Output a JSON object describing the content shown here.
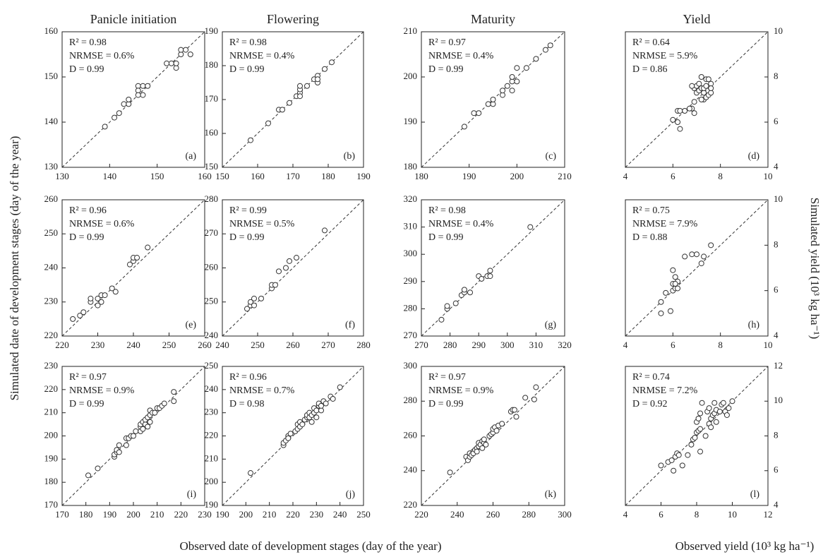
{
  "figure": {
    "y_label": "Simulated date of development stages  (day of the year)",
    "y_label_right": "Simulated yield (10³ kg ha⁻¹)",
    "x_label": "Observed date of development stages  (day of the year)",
    "x_label_right": "Observed yield (10³ kg ha⁻¹)"
  },
  "chart_data": [
    {
      "type": "scatter",
      "title": "Panicle initiation",
      "panel_label": "(a)",
      "annotations": [
        "R² = 0.98",
        "NRMSE = 0.6%",
        "D = 0.99"
      ],
      "color": "#333333",
      "identity_line": true,
      "y_axis_side": "left",
      "x": [
        139,
        141,
        142,
        143,
        144,
        144,
        146,
        146,
        147,
        147,
        148,
        152,
        153,
        154,
        154,
        155,
        155,
        156,
        157,
        146
      ],
      "y": [
        139,
        141,
        142,
        144,
        144,
        145,
        148,
        147,
        148,
        146,
        148,
        153,
        153,
        152,
        153,
        155,
        156,
        156,
        155,
        146
      ],
      "xlim": [
        130,
        160
      ],
      "ylim": [
        130,
        160
      ],
      "xticks": [
        130,
        140,
        150,
        160
      ],
      "yticks": [
        130,
        140,
        150,
        160
      ]
    },
    {
      "type": "scatter",
      "title": "Flowering",
      "panel_label": "(b)",
      "annotations": [
        "R² = 0.98",
        "NRMSE = 0.4%",
        "D = 0.99"
      ],
      "color": "#333333",
      "identity_line": true,
      "y_axis_side": "left",
      "x": [
        158,
        163,
        166,
        167,
        169,
        171,
        172,
        172,
        172,
        174,
        176,
        177,
        177,
        177,
        179,
        181,
        172
      ],
      "y": [
        158,
        163,
        167,
        167,
        169,
        171,
        172,
        173,
        174,
        174,
        176,
        175,
        177,
        176,
        179,
        181,
        171
      ],
      "xlim": [
        150,
        190
      ],
      "ylim": [
        150,
        190
      ],
      "xticks": [
        150,
        160,
        170,
        180,
        190
      ],
      "yticks": [
        150,
        160,
        170,
        180,
        190
      ]
    },
    {
      "type": "scatter",
      "title": "Maturity",
      "panel_label": "(c)",
      "annotations": [
        "R² = 0.97",
        "NRMSE = 0.4%",
        "D = 0.99"
      ],
      "color": "#333333",
      "identity_line": true,
      "y_axis_side": "left",
      "x": [
        189,
        191,
        192,
        194,
        195,
        195,
        197,
        197,
        198,
        199,
        199,
        199,
        200,
        200,
        202,
        204,
        206,
        207
      ],
      "y": [
        189,
        192,
        192,
        194,
        194,
        195,
        196,
        197,
        198,
        197,
        199,
        200,
        199,
        202,
        202,
        204,
        206,
        207
      ],
      "xlim": [
        180,
        210
      ],
      "ylim": [
        180,
        210
      ],
      "xticks": [
        180,
        190,
        200,
        210
      ],
      "yticks": [
        180,
        190,
        200,
        210
      ]
    },
    {
      "type": "scatter",
      "title": "Yield",
      "panel_label": "(d)",
      "annotations": [
        "R² = 0.64",
        "NRMSE = 5.9%",
        "D = 0.86"
      ],
      "color": "#333333",
      "identity_line": true,
      "y_axis_side": "right",
      "x": [
        6.0,
        6.2,
        6.3,
        6.2,
        6.3,
        6.5,
        6.8,
        6.7,
        6.9,
        6.9,
        6.9,
        7.0,
        7.0,
        7.1,
        7.1,
        7.2,
        7.2,
        7.3,
        7.3,
        7.3,
        7.4,
        7.4,
        7.5,
        7.5,
        7.6,
        7.6,
        7.6,
        7.2,
        6.8,
        7.4
      ],
      "y": [
        6.1,
        6.5,
        6.5,
        6.0,
        5.7,
        6.5,
        6.6,
        6.6,
        6.4,
        6.9,
        7.5,
        7.3,
        7.6,
        7.4,
        7.7,
        8.0,
        7.5,
        7.0,
        7.3,
        7.5,
        7.9,
        7.1,
        7.9,
        7.2,
        7.7,
        7.3,
        7.5,
        7.0,
        7.6,
        7.6
      ],
      "xlim": [
        4,
        10
      ],
      "ylim": [
        4,
        10
      ],
      "xticks": [
        4,
        6,
        8,
        10
      ],
      "yticks": [
        4,
        6,
        8,
        10
      ]
    },
    {
      "type": "scatter",
      "panel_label": "(e)",
      "annotations": [
        "R² = 0.96",
        "NRMSE = 0.6%",
        "D = 0.99"
      ],
      "color": "#333333",
      "identity_line": true,
      "y_axis_side": "left",
      "x": [
        223,
        225,
        226,
        228,
        228,
        230,
        230,
        231,
        231,
        232,
        234,
        235,
        239,
        240,
        240,
        241,
        244
      ],
      "y": [
        225,
        226,
        227,
        230,
        231,
        229,
        231,
        232,
        230,
        232,
        234,
        233,
        241,
        242,
        243,
        243,
        246
      ],
      "xlim": [
        220,
        260
      ],
      "ylim": [
        220,
        260
      ],
      "xticks": [
        220,
        230,
        240,
        250,
        260
      ],
      "yticks": [
        220,
        230,
        240,
        250,
        260
      ]
    },
    {
      "type": "scatter",
      "panel_label": "(f)",
      "annotations": [
        "R² = 0.99",
        "NRMSE = 0.5%",
        "D = 0.99"
      ],
      "color": "#333333",
      "identity_line": true,
      "y_axis_side": "left",
      "x": [
        247,
        248,
        248,
        249,
        249,
        251,
        254,
        254,
        255,
        256,
        258,
        259,
        261,
        269
      ],
      "y": [
        248,
        249,
        250,
        251,
        249,
        251,
        254,
        255,
        255,
        259,
        260,
        262,
        263,
        271
      ],
      "xlim": [
        240,
        280
      ],
      "ylim": [
        240,
        280
      ],
      "xticks": [
        240,
        250,
        260,
        270,
        280
      ],
      "yticks": [
        240,
        250,
        260,
        270,
        280
      ]
    },
    {
      "type": "scatter",
      "panel_label": "(g)",
      "annotations": [
        "R² = 0.98",
        "NRMSE = 0.4%",
        "D = 0.99"
      ],
      "color": "#333333",
      "identity_line": true,
      "y_axis_side": "left",
      "x": [
        277,
        279,
        279,
        282,
        284,
        285,
        285,
        287,
        290,
        291,
        293,
        294,
        294,
        308
      ],
      "y": [
        276,
        280,
        281,
        282,
        285,
        286,
        287,
        286,
        292,
        291,
        292,
        294,
        292,
        310
      ],
      "xlim": [
        270,
        320
      ],
      "ylim": [
        270,
        320
      ],
      "xticks": [
        270,
        280,
        290,
        300,
        310,
        320
      ],
      "yticks": [
        270,
        280,
        290,
        300,
        310,
        320
      ]
    },
    {
      "type": "scatter",
      "panel_label": "(h)",
      "annotations": [
        "R² = 0.75",
        "NRMSE = 7.9%",
        "D = 0.88"
      ],
      "color": "#333333",
      "identity_line": true,
      "y_axis_side": "right",
      "x": [
        5.5,
        5.5,
        5.7,
        5.9,
        6.0,
        6.0,
        6.1,
        6.1,
        6.0,
        6.2,
        6.1,
        6.5,
        6.8,
        7.0,
        7.2,
        7.3,
        7.6,
        6.2
      ],
      "y": [
        5.0,
        5.5,
        5.9,
        5.1,
        6.0,
        6.3,
        6.6,
        6.1,
        6.9,
        6.4,
        6.3,
        7.5,
        7.6,
        7.6,
        7.2,
        7.5,
        8.0,
        6.1
      ],
      "xlim": [
        4,
        10
      ],
      "ylim": [
        4,
        10
      ],
      "xticks": [
        4,
        6,
        8,
        10
      ],
      "yticks": [
        4,
        6,
        8,
        10
      ]
    },
    {
      "type": "scatter",
      "panel_label": "(i)",
      "annotations": [
        "R² = 0.97",
        "NRMSE = 0.9%",
        "D = 0.99"
      ],
      "color": "#333333",
      "identity_line": true,
      "y_axis_side": "left",
      "x": [
        181,
        185,
        192,
        192,
        193,
        193,
        194,
        194,
        197,
        197,
        198,
        199,
        200,
        201,
        203,
        203,
        203,
        204,
        204,
        205,
        205,
        206,
        206,
        207,
        207,
        207,
        208,
        209,
        210,
        211,
        212,
        213,
        217,
        217
      ],
      "y": [
        183,
        186,
        191,
        192,
        193,
        194,
        196,
        193,
        196,
        199,
        199,
        200,
        200,
        202,
        202,
        204,
        205,
        206,
        203,
        205,
        207,
        204,
        208,
        206,
        209,
        211,
        210,
        210,
        212,
        212,
        213,
        214,
        215,
        219
      ],
      "xlim": [
        170,
        230
      ],
      "ylim": [
        170,
        230
      ],
      "xticks": [
        170,
        180,
        190,
        200,
        210,
        220,
        230
      ],
      "yticks": [
        170,
        180,
        190,
        200,
        210,
        220,
        230
      ]
    },
    {
      "type": "scatter",
      "panel_label": "(j)",
      "annotations": [
        "R² = 0.96",
        "NRMSE = 0.7%",
        "D = 0.98"
      ],
      "color": "#333333",
      "identity_line": true,
      "y_axis_side": "left",
      "x": [
        202,
        216,
        216,
        217,
        218,
        218,
        219,
        221,
        222,
        222,
        223,
        223,
        224,
        225,
        226,
        226,
        227,
        227,
        228,
        228,
        229,
        229,
        230,
        230,
        231,
        231,
        232,
        232,
        233,
        234,
        236,
        237,
        240
      ],
      "y": [
        204,
        216,
        217,
        218,
        220,
        219,
        221,
        222,
        223,
        225,
        224,
        226,
        225,
        227,
        228,
        229,
        228,
        230,
        226,
        229,
        230,
        232,
        228,
        231,
        233,
        234,
        231,
        233,
        235,
        234,
        237,
        236,
        241
      ],
      "xlim": [
        190,
        250
      ],
      "ylim": [
        190,
        250
      ],
      "xticks": [
        190,
        200,
        210,
        220,
        230,
        240,
        250
      ],
      "yticks": [
        190,
        200,
        210,
        220,
        230,
        240,
        250
      ]
    },
    {
      "type": "scatter",
      "panel_label": "(k)",
      "annotations": [
        "R² = 0.97",
        "NRMSE = 0.9%",
        "D = 0.99"
      ],
      "color": "#333333",
      "identity_line": true,
      "y_axis_side": "left",
      "x": [
        236,
        245,
        246,
        247,
        247,
        248,
        249,
        249,
        250,
        251,
        251,
        252,
        252,
        253,
        254,
        254,
        255,
        255,
        256,
        258,
        259,
        260,
        260,
        261,
        262,
        263,
        265,
        270,
        271,
        272,
        273,
        278,
        283,
        284
      ],
      "y": [
        239,
        248,
        246,
        248,
        250,
        249,
        251,
        250,
        252,
        253,
        251,
        254,
        256,
        255,
        253,
        257,
        256,
        258,
        255,
        260,
        261,
        262,
        264,
        265,
        263,
        266,
        267,
        274,
        275,
        275,
        271,
        282,
        281,
        288
      ],
      "xlim": [
        220,
        300
      ],
      "ylim": [
        220,
        300
      ],
      "xticks": [
        220,
        240,
        260,
        280,
        300
      ],
      "yticks": [
        220,
        240,
        260,
        280,
        300
      ]
    },
    {
      "type": "scatter",
      "panel_label": "(l)",
      "annotations": [
        "R² = 0.74",
        "NRMSE = 7.2%",
        "D = 0.92"
      ],
      "color": "#333333",
      "identity_line": true,
      "y_axis_side": "right",
      "x": [
        6.0,
        6.4,
        6.6,
        6.7,
        6.8,
        6.9,
        7.0,
        7.2,
        7.5,
        7.7,
        7.8,
        7.9,
        8.0,
        8.0,
        8.1,
        8.1,
        8.2,
        8.2,
        8.2,
        8.3,
        8.5,
        8.6,
        8.7,
        8.7,
        8.8,
        8.8,
        8.9,
        9.0,
        9.0,
        9.1,
        9.1,
        9.3,
        9.4,
        9.5,
        9.6,
        9.7,
        9.8,
        10.0
      ],
      "y": [
        6.3,
        6.5,
        6.6,
        6.0,
        6.8,
        7.0,
        6.9,
        6.3,
        6.9,
        7.5,
        7.8,
        7.9,
        8.2,
        8.8,
        8.3,
        9.0,
        7.1,
        9.3,
        8.4,
        9.9,
        8.0,
        9.4,
        8.7,
        9.6,
        9.0,
        8.5,
        9.2,
        9.9,
        9.3,
        8.8,
        9.5,
        9.4,
        9.8,
        9.9,
        9.4,
        9.2,
        9.6,
        10.0
      ],
      "xlim": [
        4,
        12
      ],
      "ylim": [
        4,
        12
      ],
      "xticks": [
        4,
        6,
        8,
        10,
        12
      ],
      "yticks": [
        4,
        6,
        8,
        10,
        12
      ]
    }
  ]
}
